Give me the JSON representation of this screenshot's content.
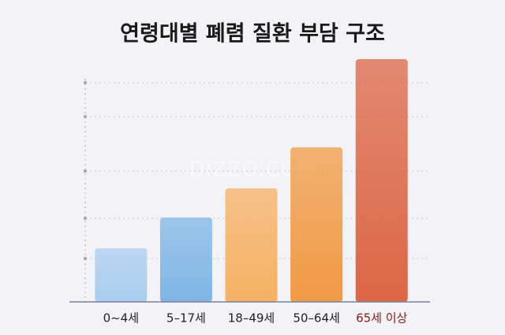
{
  "chart_data": {
    "type": "bar",
    "title": "연령대별 폐렴 질환 부담 구조",
    "watermark": "DIZZO.COM",
    "categories": [
      "0~4세",
      "5–17세",
      "18–49세",
      "50–64세",
      "65세 이상"
    ],
    "values": [
      68,
      107,
      144,
      196,
      308
    ],
    "colors": [
      "#a9cdee",
      "#7fb6e6",
      "#f6b163",
      "#f19a45",
      "#dc6645"
    ],
    "category_label_colors": [
      "#222222",
      "#222222",
      "#222222",
      "#222222",
      "#8a1c14"
    ],
    "ylim": [
      0,
      320
    ],
    "yticks": [
      55,
      106,
      166,
      235,
      278
    ],
    "grid": true
  }
}
